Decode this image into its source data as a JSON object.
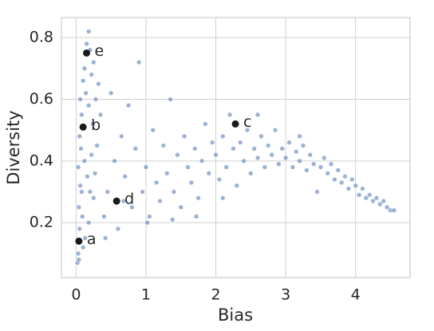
{
  "chart_data": {
    "type": "scatter",
    "xlabel": "Bias",
    "ylabel": "Diversity",
    "xlim": [
      -0.21,
      4.78
    ],
    "ylim": [
      0.022,
      0.865
    ],
    "xticks": [
      0,
      1,
      2,
      3,
      4
    ],
    "yticks": [
      0.2,
      0.4,
      0.6,
      0.8
    ],
    "grid": true,
    "color": "#4c72b0",
    "x": [
      0.02,
      0.03,
      0.05,
      0.04,
      0.06,
      0.03,
      0.07,
      0.05,
      0.08,
      0.06,
      0.1,
      0.12,
      0.15,
      0.18,
      0.2,
      0.22,
      0.25,
      0.14,
      0.18,
      0.24,
      0.28,
      0.12,
      0.16,
      0.2,
      0.09,
      0.13,
      0.18,
      0.25,
      0.3,
      0.1,
      0.08,
      0.22,
      0.27,
      0.32,
      0.35,
      0.04,
      0.4,
      0.45,
      0.5,
      0.55,
      0.6,
      0.65,
      0.7,
      0.75,
      0.8,
      0.85,
      0.9,
      0.95,
      1.0,
      1.05,
      1.1,
      1.15,
      1.2,
      1.25,
      1.3,
      1.35,
      1.4,
      1.45,
      1.5,
      1.55,
      1.6,
      1.65,
      1.7,
      1.75,
      1.8,
      1.85,
      1.9,
      1.95,
      0.42,
      0.68,
      1.02,
      1.38,
      1.72,
      2.0,
      2.05,
      2.1,
      2.15,
      2.2,
      2.25,
      2.3,
      2.35,
      2.4,
      2.45,
      2.5,
      2.55,
      2.6,
      2.65,
      2.7,
      2.75,
      2.8,
      2.85,
      2.9,
      2.95,
      3.0,
      3.05,
      3.1,
      3.15,
      3.2,
      3.25,
      3.3,
      3.35,
      3.4,
      3.45,
      3.5,
      3.55,
      3.6,
      3.65,
      3.7,
      3.75,
      3.8,
      3.85,
      3.9,
      3.95,
      4.0,
      4.05,
      4.1,
      4.15,
      4.2,
      4.25,
      4.3,
      4.35,
      4.4,
      4.45,
      4.5,
      4.55,
      2.1,
      2.6,
      3.2
    ],
    "y": [
      0.07,
      0.1,
      0.18,
      0.25,
      0.32,
      0.38,
      0.44,
      0.48,
      0.55,
      0.6,
      0.66,
      0.7,
      0.78,
      0.82,
      0.76,
      0.68,
      0.72,
      0.62,
      0.58,
      0.52,
      0.6,
      0.4,
      0.35,
      0.3,
      0.22,
      0.15,
      0.2,
      0.28,
      0.45,
      0.12,
      0.3,
      0.42,
      0.36,
      0.65,
      0.55,
      0.08,
      0.22,
      0.3,
      0.62,
      0.4,
      0.18,
      0.48,
      0.35,
      0.58,
      0.25,
      0.44,
      0.72,
      0.3,
      0.38,
      0.22,
      0.5,
      0.33,
      0.27,
      0.45,
      0.36,
      0.6,
      0.3,
      0.42,
      0.25,
      0.48,
      0.38,
      0.33,
      0.44,
      0.28,
      0.4,
      0.52,
      0.36,
      0.46,
      0.15,
      0.27,
      0.2,
      0.21,
      0.22,
      0.42,
      0.34,
      0.48,
      0.38,
      0.55,
      0.44,
      0.32,
      0.46,
      0.4,
      0.5,
      0.36,
      0.44,
      0.41,
      0.48,
      0.38,
      0.45,
      0.42,
      0.5,
      0.39,
      0.44,
      0.41,
      0.46,
      0.38,
      0.43,
      0.4,
      0.45,
      0.37,
      0.42,
      0.39,
      0.3,
      0.38,
      0.41,
      0.36,
      0.39,
      0.34,
      0.37,
      0.33,
      0.35,
      0.31,
      0.34,
      0.32,
      0.29,
      0.31,
      0.28,
      0.29,
      0.27,
      0.28,
      0.26,
      0.27,
      0.25,
      0.24,
      0.24,
      0.28,
      0.55,
      0.48
    ],
    "annotations": [
      {
        "label": "a",
        "x": 0.04,
        "y": 0.14,
        "color": "#1a1a1a"
      },
      {
        "label": "b",
        "x": 0.1,
        "y": 0.51,
        "color": "#1a1a1a"
      },
      {
        "label": "c",
        "x": 2.28,
        "y": 0.52,
        "color": "#1a1a1a"
      },
      {
        "label": "d",
        "x": 0.58,
        "y": 0.27,
        "color": "#1a1a1a"
      },
      {
        "label": "e",
        "x": 0.15,
        "y": 0.75,
        "color": "#1a1a1a"
      }
    ]
  }
}
